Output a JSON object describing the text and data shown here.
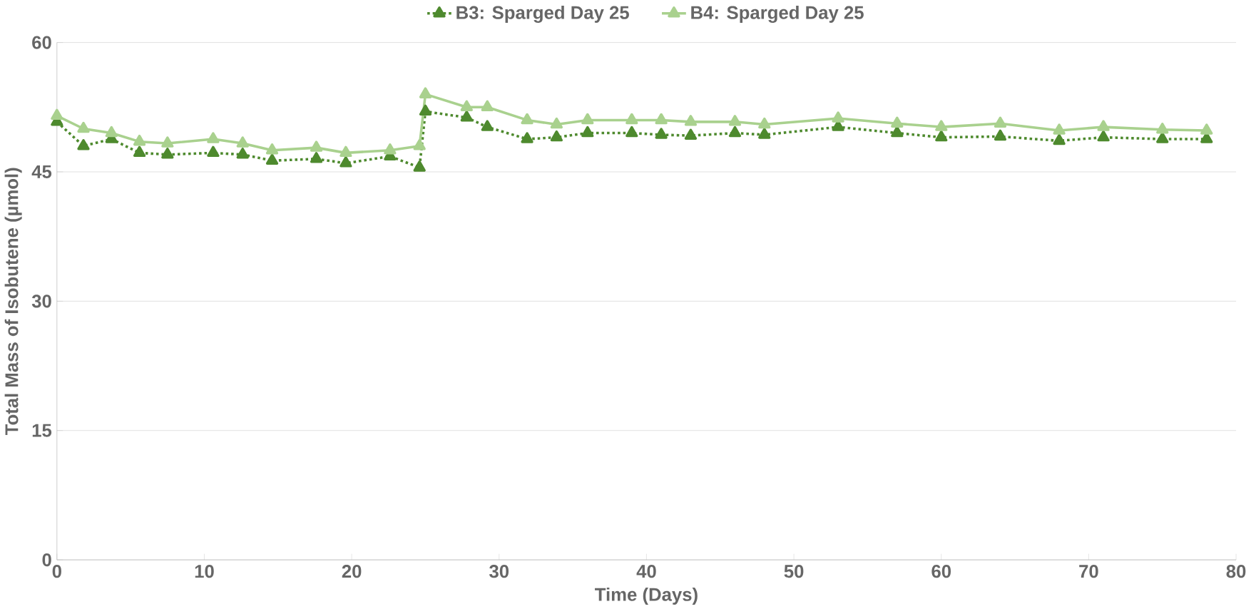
{
  "chart_data": {
    "type": "line",
    "xlabel": "Time (Days)",
    "ylabel": "Total Mass of Isobutene (µmol)",
    "xlim": [
      0,
      80
    ],
    "xticks": [
      0,
      10,
      20,
      30,
      40,
      50,
      60,
      70,
      80
    ],
    "ylim": [
      0,
      60
    ],
    "yticks": [
      0,
      15,
      30,
      45,
      60
    ],
    "grid": "y",
    "legend": "top",
    "marker": "triangle",
    "series": [
      {
        "name": "B3: Sparged Day 25",
        "color": "#4e8a2e",
        "line_style": "dotted",
        "x": [
          0,
          1.8,
          3.7,
          5.6,
          7.5,
          10.6,
          12.6,
          14.6,
          17.6,
          19.6,
          22.6,
          24.6,
          25,
          27.8,
          29.2,
          31.9,
          33.9,
          36,
          39,
          41,
          43,
          46,
          48,
          53,
          57,
          60,
          64,
          68,
          71,
          75,
          78
        ],
        "values": [
          50.8,
          48,
          48.8,
          47.2,
          47,
          47.2,
          47,
          46.3,
          46.5,
          46,
          46.8,
          45.5,
          52,
          51.3,
          50.2,
          48.8,
          49,
          49.5,
          49.5,
          49.3,
          49.2,
          49.5,
          49.3,
          50.2,
          49.5,
          49,
          49.1,
          48.6,
          49,
          48.8,
          48.8
        ]
      },
      {
        "name": "B4: Sparged Day 25",
        "color": "#a9d18e",
        "line_style": "solid",
        "x": [
          0,
          1.8,
          3.7,
          5.6,
          7.5,
          10.6,
          12.6,
          14.6,
          17.6,
          19.6,
          22.6,
          24.6,
          25,
          27.8,
          29.2,
          31.9,
          33.9,
          36,
          39,
          41,
          43,
          46,
          48,
          53,
          57,
          60,
          64,
          68,
          71,
          75,
          78
        ],
        "values": [
          51.5,
          50,
          49.5,
          48.5,
          48.3,
          48.8,
          48.3,
          47.5,
          47.8,
          47.2,
          47.5,
          48,
          54,
          52.5,
          52.5,
          51,
          50.5,
          51,
          51,
          51,
          50.8,
          50.8,
          50.5,
          51.2,
          50.6,
          50.2,
          50.6,
          49.8,
          50.2,
          49.9,
          49.8
        ]
      }
    ]
  }
}
